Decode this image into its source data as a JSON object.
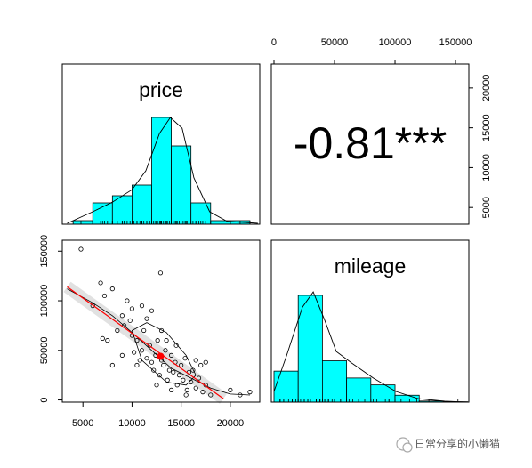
{
  "chart_data": [
    {
      "type": "histogram",
      "title": "price",
      "bins": [
        4000,
        6000,
        8000,
        10000,
        12000,
        14000,
        16000,
        18000,
        20000,
        22000
      ],
      "values": [
        1,
        6,
        8,
        11,
        30,
        22,
        6,
        1,
        1
      ],
      "color": "#00ffff",
      "xlim": [
        2900,
        23000
      ],
      "ylim": [
        0,
        45
      ],
      "density": {
        "x": [
          3400,
          6000,
          8000,
          10000,
          11400,
          12800,
          13900,
          15100,
          16300,
          17900,
          19700,
          21500,
          22800
        ],
        "values": [
          0.25,
          3.5,
          6.2,
          9.7,
          15,
          25.5,
          30,
          27,
          13,
          3.5,
          0.75,
          0.5,
          0.25
        ]
      }
    },
    {
      "type": "correlation",
      "label": "-0.81***",
      "xlim": [
        -2200,
        161000
      ],
      "xticks": [
        0,
        50000,
        100000,
        150000
      ],
      "ylim": [
        2900,
        23000
      ],
      "yticks": [
        5000,
        10000,
        15000,
        20000
      ]
    },
    {
      "type": "scatter",
      "x": [
        4800,
        12900,
        6800,
        7200,
        6000,
        8000,
        7000,
        7500,
        8000,
        8500,
        9000,
        9500,
        9200,
        9800,
        10000,
        10200,
        10500,
        10800,
        11000,
        11200,
        11500,
        11800,
        12000,
        12200,
        12400,
        12600,
        12800,
        13000,
        13200,
        13400,
        13600,
        13800,
        14000,
        14200,
        14400,
        14600,
        14800,
        15000,
        15200,
        15400,
        15600,
        15800,
        16000,
        16200,
        16500,
        16800,
        17000,
        17200,
        17500,
        18000,
        12000,
        11000,
        10000,
        13500,
        14500,
        9000,
        10500,
        12500,
        14000,
        15500,
        20000,
        21000,
        22000,
        13000,
        11500,
        16500,
        17500
      ],
      "values": [
        152000,
        128000,
        118000,
        105000,
        95000,
        112000,
        62000,
        60000,
        35000,
        70000,
        85000,
        100000,
        75000,
        80000,
        65000,
        48000,
        60000,
        40000,
        50000,
        70000,
        42000,
        55000,
        38000,
        30000,
        45000,
        60000,
        25000,
        40000,
        35000,
        50000,
        20000,
        30000,
        45000,
        28000,
        38000,
        15000,
        25000,
        35000,
        20000,
        42000,
        10000,
        28000,
        18000,
        30000,
        12000,
        22000,
        35000,
        8000,
        15000,
        5000,
        90000,
        95000,
        92000,
        60000,
        55000,
        45000,
        35000,
        15000,
        10000,
        5000,
        10000,
        5000,
        8000,
        70000,
        82000,
        40000,
        38000
      ],
      "xlim": [
        2900,
        23000
      ],
      "xticks": [
        5000,
        10000,
        15000,
        20000
      ],
      "ylim": [
        -2200,
        161000
      ],
      "yticks": [
        0,
        50000,
        100000,
        150000
      ],
      "fit": {
        "x": [
          3400,
          19300
        ],
        "values": [
          114000,
          1300
        ],
        "color": "#ff0000"
      },
      "smooth": {
        "x": [
          3400,
          6000,
          8000,
          10000,
          12000,
          14000,
          16000,
          18000,
          20000,
          22000
        ],
        "values": [
          112000,
          98000,
          85000,
          68000,
          50000,
          32000,
          22000,
          12000,
          6000,
          5000
        ]
      },
      "ellipse": {
        "x": [
          10000,
          11500,
          13500,
          15500,
          16500,
          15500,
          13500,
          11000
        ],
        "values": [
          70000,
          78000,
          68000,
          45000,
          25000,
          15000,
          18000,
          40000
        ]
      },
      "mean": {
        "x": 12900,
        "value": 44000
      }
    },
    {
      "type": "histogram",
      "title": "mileage",
      "bins": [
        0,
        20000,
        40000,
        60000,
        80000,
        100000,
        120000,
        140000,
        160000
      ],
      "values": [
        9,
        31,
        12,
        7,
        5,
        2,
        0.3,
        0.1
      ],
      "color": "#00ffff",
      "xlim": [
        -2200,
        161000
      ],
      "ylim": [
        0,
        47
      ],
      "density": {
        "x": [
          0,
          10300,
          23500,
          32400,
          42000,
          51500,
          64000,
          82000,
          100700,
          119000,
          141000,
          160000
        ],
        "values": [
          3.1,
          13.4,
          27.6,
          32,
          23.7,
          14.7,
          11.4,
          7,
          3.1,
          1,
          0.26,
          0
        ]
      }
    }
  ],
  "watermark": "日常分享的小懒猫"
}
